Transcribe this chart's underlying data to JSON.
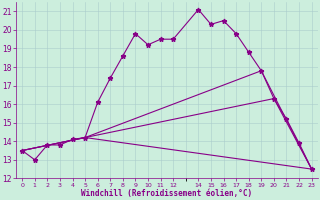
{
  "xlabel": "Windchill (Refroidissement éolien,°C)",
  "background_color": "#cceedd",
  "line_color": "#880088",
  "xlim": [
    -0.5,
    23.5
  ],
  "ylim": [
    12,
    21.5
  ],
  "yticks": [
    12,
    13,
    14,
    15,
    16,
    17,
    18,
    19,
    20,
    21
  ],
  "xtick_positions": [
    0,
    1,
    2,
    3,
    4,
    5,
    6,
    7,
    8,
    9,
    10,
    11,
    12,
    14,
    15,
    16,
    17,
    18,
    19,
    20,
    21,
    22,
    23
  ],
  "xtick_labels": [
    "0",
    "1",
    "2",
    "3",
    "4",
    "5",
    "6",
    "7",
    "8",
    "9",
    "10",
    "11",
    "12",
    "14",
    "15",
    "16",
    "17",
    "18",
    "19",
    "20",
    "21",
    "22",
    "23"
  ],
  "series": [
    {
      "x": [
        0,
        1,
        2,
        3,
        4,
        5,
        6,
        7,
        8,
        9,
        10,
        11,
        12,
        14,
        15,
        16,
        17,
        18,
        19,
        20,
        21,
        22,
        23
      ],
      "y": [
        13.5,
        13.0,
        13.8,
        13.8,
        14.1,
        14.2,
        16.1,
        17.4,
        18.6,
        19.8,
        19.2,
        19.5,
        19.5,
        21.1,
        20.3,
        20.5,
        19.8,
        18.8,
        17.8,
        16.3,
        15.2,
        13.9,
        12.5
      ],
      "marker": "*",
      "markersize": 3.5,
      "linewidth": 0.8
    },
    {
      "x": [
        0,
        5,
        23
      ],
      "y": [
        13.5,
        14.2,
        12.5
      ],
      "marker": null,
      "linewidth": 0.8
    },
    {
      "x": [
        0,
        5,
        20,
        23
      ],
      "y": [
        13.5,
        14.2,
        16.3,
        12.5
      ],
      "marker": null,
      "linewidth": 0.8
    },
    {
      "x": [
        0,
        5,
        19,
        23
      ],
      "y": [
        13.5,
        14.2,
        17.8,
        12.5
      ],
      "marker": null,
      "linewidth": 0.8
    }
  ]
}
